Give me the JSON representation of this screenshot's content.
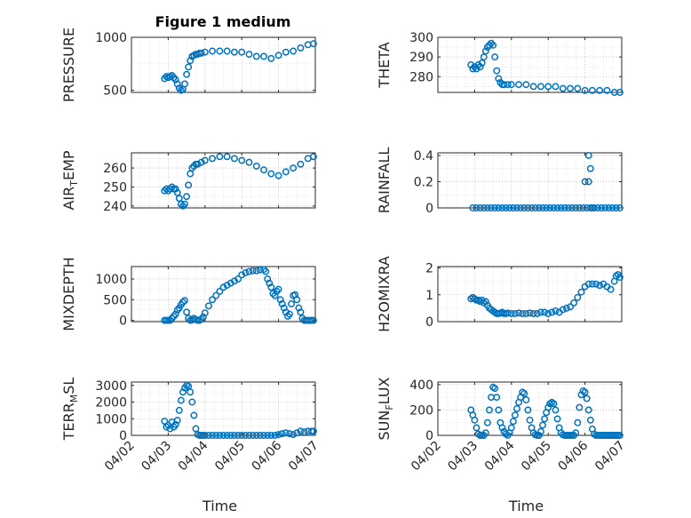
{
  "figure_title": "Figure 1 medium",
  "colors": {
    "marker": "#0072BD",
    "axis": "#262626",
    "background": "#ffffff"
  },
  "chart_data": [
    {
      "type": "scatter",
      "id": "pressure",
      "title": "Figure 1 medium",
      "ylabel": "PRESSURE",
      "ylabel_sub": null,
      "ylabel_rest": null,
      "ylim": [
        480,
        1000
      ],
      "yticks": [
        500,
        1000
      ],
      "yticklabels": [
        "500",
        "1000"
      ],
      "xlim": [
        0,
        5
      ],
      "grid": true,
      "x": [
        0.9,
        0.95,
        1.0,
        1.05,
        1.1,
        1.15,
        1.2,
        1.25,
        1.3,
        1.35,
        1.4,
        1.45,
        1.5,
        1.55,
        1.6,
        1.65,
        1.7,
        1.75,
        1.8,
        1.85,
        1.9,
        2.0,
        2.2,
        2.4,
        2.6,
        2.8,
        3.0,
        3.2,
        3.4,
        3.6,
        3.8,
        4.0,
        4.2,
        4.4,
        4.6,
        4.8,
        4.95
      ],
      "y": [
        610,
        630,
        620,
        630,
        640,
        620,
        600,
        560,
        520,
        500,
        510,
        560,
        650,
        720,
        780,
        820,
        830,
        840,
        840,
        850,
        850,
        860,
        870,
        870,
        870,
        860,
        860,
        840,
        820,
        820,
        800,
        830,
        860,
        870,
        900,
        930,
        940
      ]
    },
    {
      "type": "scatter",
      "id": "theta",
      "ylabel": "THETA",
      "ylabel_sub": null,
      "ylabel_rest": null,
      "ylim": [
        272,
        300
      ],
      "yticks": [
        280,
        290,
        300
      ],
      "yticklabels": [
        "280",
        "290",
        "300"
      ],
      "xlim": [
        0,
        5
      ],
      "grid": true,
      "x": [
        0.9,
        0.95,
        1.0,
        1.05,
        1.1,
        1.15,
        1.2,
        1.25,
        1.3,
        1.35,
        1.4,
        1.45,
        1.5,
        1.55,
        1.6,
        1.65,
        1.7,
        1.75,
        1.8,
        1.9,
        2.0,
        2.2,
        2.4,
        2.6,
        2.8,
        3.0,
        3.2,
        3.4,
        3.6,
        3.8,
        4.0,
        4.2,
        4.4,
        4.6,
        4.8,
        4.95
      ],
      "y": [
        286,
        284,
        285,
        284,
        286,
        285,
        287,
        290,
        293,
        295,
        296,
        297,
        296,
        290,
        283,
        279,
        277,
        276,
        276,
        276,
        276,
        276,
        276,
        275,
        275,
        275,
        275,
        274,
        274,
        274,
        273,
        273,
        273,
        273,
        272,
        272
      ]
    },
    {
      "type": "scatter",
      "id": "air_temp",
      "ylabel": "AIR",
      "ylabel_sub": "T",
      "ylabel_rest": "EMP",
      "ylim": [
        239,
        268
      ],
      "yticks": [
        240,
        250,
        260
      ],
      "yticklabels": [
        "240",
        "250",
        "260"
      ],
      "xlim": [
        0,
        5
      ],
      "grid": true,
      "x": [
        0.9,
        0.95,
        1.0,
        1.05,
        1.1,
        1.15,
        1.2,
        1.25,
        1.3,
        1.35,
        1.4,
        1.45,
        1.5,
        1.55,
        1.6,
        1.65,
        1.7,
        1.75,
        1.8,
        1.9,
        2.0,
        2.2,
        2.4,
        2.6,
        2.8,
        3.0,
        3.2,
        3.4,
        3.6,
        3.8,
        4.0,
        4.2,
        4.4,
        4.6,
        4.8,
        4.95
      ],
      "y": [
        248,
        249,
        248,
        249,
        250,
        249,
        249,
        247,
        244,
        241,
        240,
        241,
        245,
        251,
        257,
        260,
        261,
        262,
        262,
        263,
        264,
        265,
        266,
        266,
        265,
        264,
        263,
        261,
        259,
        257,
        256,
        258,
        260,
        262,
        265,
        266
      ]
    },
    {
      "type": "scatter",
      "id": "rainfall",
      "ylabel": "RAINFALL",
      "ylabel_sub": null,
      "ylabel_rest": null,
      "ylim": [
        0,
        0.42
      ],
      "yticks": [
        0,
        0.2,
        0.4
      ],
      "yticklabels": [
        "0",
        "0.2",
        "0.4"
      ],
      "xlim": [
        0,
        5
      ],
      "grid": true,
      "x": [
        0.95,
        1.05,
        1.15,
        1.25,
        1.35,
        1.45,
        1.55,
        1.65,
        1.75,
        1.85,
        1.95,
        2.05,
        2.15,
        2.25,
        2.35,
        2.45,
        2.55,
        2.65,
        2.75,
        2.85,
        2.95,
        3.05,
        3.15,
        3.25,
        3.35,
        3.45,
        3.55,
        3.65,
        3.75,
        3.85,
        3.95,
        4.05,
        4.15,
        4.25,
        4.35,
        4.45,
        4.55,
        4.65,
        4.75,
        4.85,
        4.95,
        4.0,
        4.1,
        4.1,
        4.15,
        4.2
      ],
      "y": [
        0,
        0,
        0,
        0,
        0,
        0,
        0,
        0,
        0,
        0,
        0,
        0,
        0,
        0,
        0,
        0,
        0,
        0,
        0,
        0,
        0,
        0,
        0,
        0,
        0,
        0,
        0,
        0,
        0,
        0,
        0,
        0,
        0,
        0,
        0,
        0,
        0,
        0,
        0,
        0,
        0,
        0.2,
        0.2,
        0.4,
        0.3,
        0
      ]
    },
    {
      "type": "scatter",
      "id": "mixdepth",
      "ylabel": "MIXDEPTH",
      "ylabel_sub": null,
      "ylabel_rest": null,
      "ylim": [
        -30,
        1300
      ],
      "yticks": [
        0,
        500,
        1000
      ],
      "yticklabels": [
        "0",
        "500",
        "1000"
      ],
      "xlim": [
        0,
        5
      ],
      "grid": true,
      "x": [
        0.9,
        0.95,
        1.0,
        1.05,
        1.1,
        1.15,
        1.2,
        1.25,
        1.3,
        1.35,
        1.4,
        1.45,
        1.5,
        1.55,
        1.6,
        1.65,
        1.7,
        1.75,
        1.8,
        1.85,
        1.9,
        1.95,
        2.0,
        2.1,
        2.2,
        2.3,
        2.4,
        2.5,
        2.6,
        2.7,
        2.8,
        2.9,
        3.0,
        3.1,
        3.2,
        3.3,
        3.4,
        3.5,
        3.6,
        3.65,
        3.7,
        3.75,
        3.8,
        3.85,
        3.9,
        3.95,
        4.0,
        4.05,
        4.1,
        4.15,
        4.2,
        4.25,
        4.3,
        4.35,
        4.4,
        4.45,
        4.5,
        4.55,
        4.6,
        4.65,
        4.7,
        4.75,
        4.8,
        4.85,
        4.9,
        4.95
      ],
      "y": [
        0,
        0,
        0,
        0,
        50,
        100,
        150,
        250,
        300,
        380,
        440,
        480,
        200,
        50,
        0,
        10,
        50,
        20,
        0,
        0,
        30,
        80,
        180,
        350,
        500,
        600,
        700,
        800,
        850,
        900,
        950,
        1000,
        1100,
        1150,
        1180,
        1200,
        1200,
        1220,
        1230,
        1180,
        1000,
        900,
        800,
        650,
        600,
        700,
        750,
        500,
        400,
        300,
        200,
        100,
        150,
        400,
        600,
        620,
        500,
        300,
        200,
        50,
        0,
        0,
        0,
        0,
        0,
        0
      ]
    },
    {
      "type": "scatter",
      "id": "h2omixra",
      "ylabel": "H2OMIXRA",
      "ylabel_sub": null,
      "ylabel_rest": null,
      "ylim": [
        0,
        2.05
      ],
      "yticks": [
        0,
        1,
        2
      ],
      "yticklabels": [
        "0",
        "1",
        "2"
      ],
      "xlim": [
        0,
        5
      ],
      "grid": true,
      "x": [
        0.9,
        0.95,
        1.0,
        1.05,
        1.1,
        1.15,
        1.2,
        1.25,
        1.3,
        1.35,
        1.4,
        1.45,
        1.5,
        1.55,
        1.6,
        1.65,
        1.7,
        1.75,
        1.8,
        1.85,
        1.9,
        2.0,
        2.1,
        2.2,
        2.3,
        2.4,
        2.5,
        2.6,
        2.7,
        2.8,
        2.9,
        3.0,
        3.1,
        3.2,
        3.3,
        3.4,
        3.5,
        3.6,
        3.7,
        3.8,
        3.9,
        4.0,
        4.1,
        4.2,
        4.3,
        4.4,
        4.5,
        4.6,
        4.7,
        4.8,
        4.85,
        4.9,
        4.95
      ],
      "y": [
        0.85,
        0.9,
        0.85,
        0.8,
        0.8,
        0.75,
        0.8,
        0.7,
        0.75,
        0.6,
        0.5,
        0.45,
        0.4,
        0.35,
        0.3,
        0.3,
        0.32,
        0.35,
        0.3,
        0.3,
        0.32,
        0.3,
        0.3,
        0.32,
        0.3,
        0.3,
        0.32,
        0.3,
        0.3,
        0.35,
        0.35,
        0.3,
        0.35,
        0.4,
        0.35,
        0.45,
        0.5,
        0.55,
        0.7,
        0.9,
        1.1,
        1.3,
        1.4,
        1.4,
        1.4,
        1.35,
        1.4,
        1.3,
        1.2,
        1.5,
        1.7,
        1.75,
        1.65
      ]
    },
    {
      "type": "scatter",
      "id": "terr_msl",
      "ylabel": "TERR",
      "ylabel_sub": "M",
      "ylabel_rest": "SL",
      "ylim": [
        0,
        3200
      ],
      "yticks": [
        0,
        1000,
        2000,
        3000
      ],
      "yticklabels": [
        "0",
        "1000",
        "2000",
        "3000"
      ],
      "xlim": [
        0,
        5
      ],
      "grid": true,
      "x": [
        0.9,
        0.95,
        1.0,
        1.05,
        1.1,
        1.15,
        1.2,
        1.25,
        1.3,
        1.35,
        1.4,
        1.45,
        1.5,
        1.55,
        1.6,
        1.65,
        1.7,
        1.75,
        1.8,
        1.85,
        1.9,
        1.95,
        2.0,
        2.1,
        2.2,
        2.3,
        2.4,
        2.5,
        2.6,
        2.7,
        2.8,
        2.9,
        3.0,
        3.1,
        3.2,
        3.3,
        3.4,
        3.5,
        3.6,
        3.7,
        3.8,
        3.9,
        4.0,
        4.1,
        4.2,
        4.3,
        4.4,
        4.5,
        4.6,
        4.7,
        4.8,
        4.9,
        4.95
      ],
      "y": [
        850,
        500,
        600,
        400,
        800,
        500,
        650,
        900,
        1500,
        2100,
        2600,
        2850,
        3000,
        2950,
        2600,
        2000,
        1200,
        400,
        50,
        0,
        0,
        0,
        0,
        0,
        0,
        0,
        0,
        0,
        0,
        0,
        0,
        0,
        0,
        0,
        0,
        0,
        0,
        0,
        0,
        0,
        0,
        0,
        50,
        100,
        150,
        100,
        50,
        150,
        250,
        200,
        250,
        250,
        250
      ]
    },
    {
      "type": "scatter",
      "id": "sun_flux",
      "ylabel": "SUN",
      "ylabel_sub": "F",
      "ylabel_rest": "LUX",
      "ylim": [
        0,
        420
      ],
      "yticks": [
        0,
        200,
        400
      ],
      "yticklabels": [
        "0",
        "200",
        "400"
      ],
      "xlim": [
        0,
        5
      ],
      "grid": true,
      "x": [
        0.9,
        0.95,
        1.0,
        1.05,
        1.1,
        1.15,
        1.2,
        1.25,
        1.3,
        1.35,
        1.4,
        1.45,
        1.5,
        1.55,
        1.6,
        1.65,
        1.7,
        1.75,
        1.8,
        1.85,
        1.9,
        1.95,
        2.0,
        2.05,
        2.1,
        2.15,
        2.2,
        2.25,
        2.3,
        2.35,
        2.4,
        2.45,
        2.5,
        2.55,
        2.6,
        2.65,
        2.7,
        2.75,
        2.8,
        2.85,
        2.9,
        2.95,
        3.0,
        3.05,
        3.1,
        3.15,
        3.2,
        3.25,
        3.3,
        3.35,
        3.4,
        3.45,
        3.5,
        3.55,
        3.6,
        3.65,
        3.7,
        3.75,
        3.8,
        3.85,
        3.9,
        3.95,
        4.0,
        4.05,
        4.1,
        4.15,
        4.2,
        4.25,
        4.3,
        4.35,
        4.4,
        4.45,
        4.5,
        4.55,
        4.6,
        4.65,
        4.7,
        4.75,
        4.8,
        4.85,
        4.9,
        4.95
      ],
      "y": [
        200,
        160,
        120,
        60,
        10,
        0,
        0,
        0,
        20,
        100,
        200,
        300,
        380,
        370,
        300,
        200,
        100,
        60,
        30,
        10,
        0,
        20,
        60,
        110,
        160,
        210,
        260,
        300,
        340,
        330,
        280,
        200,
        120,
        60,
        20,
        5,
        0,
        0,
        30,
        80,
        130,
        180,
        220,
        250,
        260,
        250,
        200,
        130,
        60,
        20,
        5,
        0,
        0,
        0,
        0,
        0,
        0,
        20,
        100,
        220,
        320,
        350,
        340,
        290,
        200,
        120,
        50,
        10,
        0,
        0,
        0,
        0,
        0,
        0,
        0,
        0,
        0,
        0,
        0,
        0,
        0,
        0
      ]
    }
  ],
  "x_axis": {
    "ticklabels": [
      "04/02",
      "04/03",
      "04/04",
      "04/05",
      "04/06",
      "04/07"
    ],
    "label": "Time"
  }
}
